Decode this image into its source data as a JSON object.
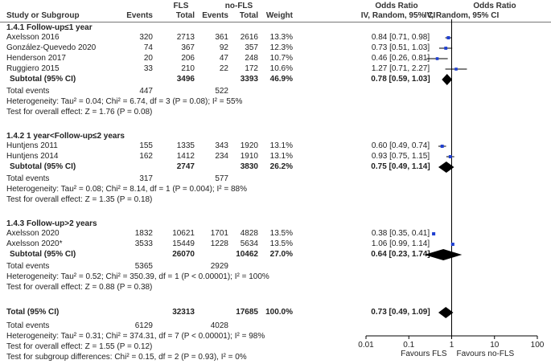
{
  "header": {
    "group1": "FLS",
    "group2": "no-FLS",
    "col_study": "Study or Subgroup",
    "col_events1": "Events",
    "col_total1": "Total",
    "col_events2": "Events",
    "col_total2": "Total",
    "col_weight": "Weight",
    "col_or_title": "Odds Ratio",
    "col_or_sub": "IV, Random, 95% CI",
    "plot_title": "Odds Ratio",
    "plot_sub": "IV, Random, 95% CI"
  },
  "subgroups": [
    {
      "title": "1.4.1 Follow-up≤1 year",
      "studies": [
        {
          "name": "Axelsson 2016",
          "e1": "320",
          "t1": "2713",
          "e2": "361",
          "t2": "2616",
          "w": "13.3%",
          "ci": "0.84 [0.71, 0.98]"
        },
        {
          "name": "González-Quevedo 2020",
          "e1": "74",
          "t1": "367",
          "e2": "92",
          "t2": "357",
          "w": "12.3%",
          "ci": "0.73 [0.51, 1.03]"
        },
        {
          "name": "Henderson 2017",
          "e1": "20",
          "t1": "206",
          "e2": "47",
          "t2": "248",
          "w": "10.7%",
          "ci": "0.46 [0.26, 0.81]"
        },
        {
          "name": "Ruggiero 2015",
          "e1": "33",
          "t1": "210",
          "e2": "22",
          "t2": "172",
          "w": "10.6%",
          "ci": "1.27 [0.71, 2.27]"
        }
      ],
      "subtotal": {
        "label": "Subtotal (95% CI)",
        "t1": "3496",
        "t2": "3393",
        "w": "46.9%",
        "ci": "0.78 [0.59, 1.03]"
      },
      "total_events": {
        "label": "Total events",
        "e1": "447",
        "e2": "522"
      },
      "heterogeneity": "Heterogeneity: Tau² = 0.04; Chi² = 6.74, df = 3 (P = 0.08); I² = 55%",
      "overall": "Test for overall effect: Z = 1.76 (P = 0.08)"
    },
    {
      "title": "1.4.2 1 year<Follow-up≤2 years",
      "studies": [
        {
          "name": "Huntjens 2011",
          "e1": "155",
          "t1": "1335",
          "e2": "343",
          "t2": "1920",
          "w": "13.1%",
          "ci": "0.60 [0.49, 0.74]"
        },
        {
          "name": "Huntjens 2014",
          "e1": "162",
          "t1": "1412",
          "e2": "234",
          "t2": "1910",
          "w": "13.1%",
          "ci": "0.93 [0.75, 1.15]"
        }
      ],
      "subtotal": {
        "label": "Subtotal (95% CI)",
        "t1": "2747",
        "t2": "3830",
        "w": "26.2%",
        "ci": "0.75 [0.49, 1.14]"
      },
      "total_events": {
        "label": "Total events",
        "e1": "317",
        "e2": "577"
      },
      "heterogeneity": "Heterogeneity: Tau² = 0.08; Chi² = 8.14, df = 1 (P = 0.004); I² = 88%",
      "overall": "Test for overall effect: Z = 1.35 (P = 0.18)"
    },
    {
      "title": "1.4.3 Follow-up>2 years",
      "studies": [
        {
          "name": "Axelsson 2020",
          "e1": "1832",
          "t1": "10621",
          "e2": "1701",
          "t2": "4828",
          "w": "13.5%",
          "ci": "0.38 [0.35, 0.41]"
        },
        {
          "name": "Axelsson 2020*",
          "e1": "3533",
          "t1": "15449",
          "e2": "1228",
          "t2": "5634",
          "w": "13.5%",
          "ci": "1.06 [0.99, 1.14]"
        }
      ],
      "subtotal": {
        "label": "Subtotal (95% CI)",
        "t1": "26070",
        "t2": "10462",
        "w": "27.0%",
        "ci": "0.64 [0.23, 1.74]"
      },
      "total_events": {
        "label": "Total events",
        "e1": "5365",
        "e2": "2929"
      },
      "heterogeneity": "Heterogeneity: Tau² = 0.52; Chi² = 350.39, df = 1 (P < 0.00001); I² = 100%",
      "overall": "Test for overall effect: Z = 0.88 (P = 0.38)"
    }
  ],
  "total": {
    "label": "Total (95% CI)",
    "t1": "32313",
    "t2": "17685",
    "w": "100.0%",
    "ci": "0.73 [0.49, 1.09]",
    "events_label": "Total events",
    "e1": "6129",
    "e2": "4028",
    "heterogeneity": "Heterogeneity: Tau² = 0.31; Chi² = 374.31, df = 7 (P < 0.00001); I² = 98%",
    "overall": "Test for overall effect: Z = 1.55 (P = 0.12)",
    "subgroup_diff": "Test for subgroup differences: Chi² = 0.15, df = 2 (P = 0.93), I² = 0%"
  },
  "axis": {
    "ticks": [
      "0.01",
      "0.1",
      "1",
      "10",
      "100"
    ],
    "favours_left": "Favours FLS",
    "favours_right": "Favours no-FLS"
  },
  "colors": {
    "study_marker": "#1f3fd1",
    "diamond": "#000000",
    "line": "#000000"
  },
  "chart_data": {
    "type": "forest",
    "title": "Odds Ratio",
    "subtitle": "IV, Random, 95% CI",
    "scale": "log",
    "xlim": [
      0.01,
      100
    ],
    "xticks": [
      0.01,
      0.1,
      1,
      10,
      100
    ],
    "xlabel_left": "Favours FLS",
    "xlabel_right": "Favours no-FLS",
    "rows": [
      {
        "label": "Axelsson 2016",
        "kind": "study",
        "or": 0.84,
        "lo": 0.71,
        "hi": 0.98,
        "weight": 13.3
      },
      {
        "label": "González-Quevedo 2020",
        "kind": "study",
        "or": 0.73,
        "lo": 0.51,
        "hi": 1.03,
        "weight": 12.3
      },
      {
        "label": "Henderson 2017",
        "kind": "study",
        "or": 0.46,
        "lo": 0.26,
        "hi": 0.81,
        "weight": 10.7
      },
      {
        "label": "Ruggiero 2015",
        "kind": "study",
        "or": 1.27,
        "lo": 0.71,
        "hi": 2.27,
        "weight": 10.6
      },
      {
        "label": "Subtotal 1.4.1",
        "kind": "diamond",
        "or": 0.78,
        "lo": 0.59,
        "hi": 1.03,
        "weight": 46.9
      },
      {
        "label": "Huntjens 2011",
        "kind": "study",
        "or": 0.6,
        "lo": 0.49,
        "hi": 0.74,
        "weight": 13.1
      },
      {
        "label": "Huntjens 2014",
        "kind": "study",
        "or": 0.93,
        "lo": 0.75,
        "hi": 1.15,
        "weight": 13.1
      },
      {
        "label": "Subtotal 1.4.2",
        "kind": "diamond",
        "or": 0.75,
        "lo": 0.49,
        "hi": 1.14,
        "weight": 26.2
      },
      {
        "label": "Axelsson 2020",
        "kind": "study",
        "or": 0.38,
        "lo": 0.35,
        "hi": 0.41,
        "weight": 13.5
      },
      {
        "label": "Axelsson 2020*",
        "kind": "study",
        "or": 1.06,
        "lo": 0.99,
        "hi": 1.14,
        "weight": 13.5
      },
      {
        "label": "Subtotal 1.4.3",
        "kind": "diamond",
        "or": 0.64,
        "lo": 0.23,
        "hi": 1.74,
        "weight": 27.0
      },
      {
        "label": "Total (95% CI)",
        "kind": "diamond",
        "or": 0.73,
        "lo": 0.49,
        "hi": 1.09,
        "weight": 100.0
      }
    ]
  }
}
